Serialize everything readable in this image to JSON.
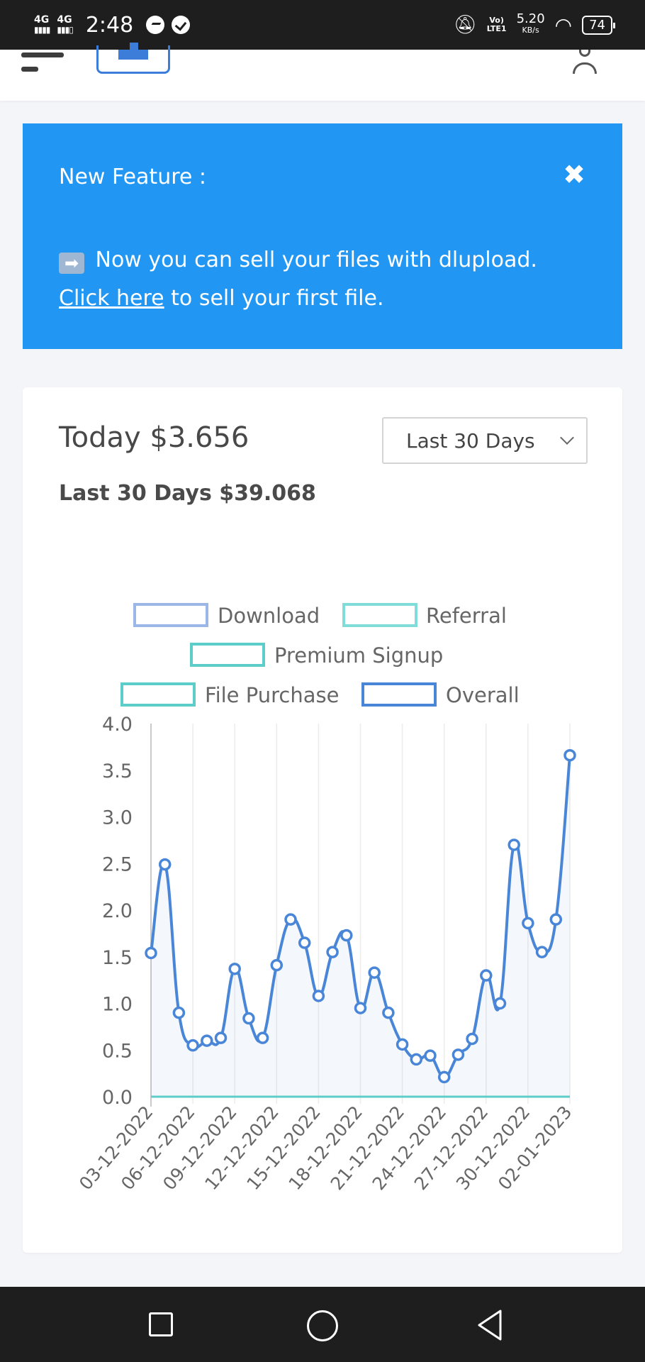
{
  "status_bar": {
    "network_1": "4G",
    "network_2": "4G",
    "time": "2:48",
    "volte_top": "Vo)",
    "volte_bottom": "LTE1",
    "speed_value": "5.20",
    "speed_unit": "KB/s",
    "battery": "74"
  },
  "alert": {
    "title": "New Feature :",
    "close": "✖",
    "arrow": "➡",
    "message": "Now you can sell your files with dlupload.",
    "link_text": "Click here",
    "link_suffix": "to sell your first file."
  },
  "earnings": {
    "today": "Today $3.656",
    "last30": "Last 30 Days $39.068",
    "range_selected": "Last 30 Days"
  },
  "chart_data": {
    "type": "line",
    "legend": [
      {
        "name": "Download",
        "color": "#9ab7e8"
      },
      {
        "name": "Referral",
        "color": "#80dcd8"
      },
      {
        "name": "Premium Signup",
        "color": "#5ccdc8"
      },
      {
        "name": "File Purchase",
        "color": "#5ccdc8"
      },
      {
        "name": "Overall",
        "color": "#4a86d8"
      }
    ],
    "ylim": [
      0,
      4.0
    ],
    "y_ticks": [
      "0.0",
      "0.5",
      "1.0",
      "1.5",
      "2.0",
      "2.5",
      "3.0",
      "3.5",
      "4.0"
    ],
    "x_tick_labels": [
      "03-12-2022",
      "06-12-2022",
      "09-12-2022",
      "12-12-2022",
      "15-12-2022",
      "18-12-2022",
      "21-12-2022",
      "24-12-2022",
      "27-12-2022",
      "30-12-2022",
      "02-01-2023"
    ],
    "overall_values": [
      1.54,
      2.49,
      0.9,
      0.55,
      0.6,
      0.63,
      1.37,
      0.84,
      0.63,
      1.41,
      1.9,
      1.65,
      1.08,
      1.55,
      1.73,
      0.95,
      1.33,
      0.9,
      0.56,
      0.4,
      0.44,
      0.21,
      0.45,
      0.62,
      1.3,
      1.0,
      2.7,
      1.86,
      1.55,
      1.9,
      3.66
    ],
    "flat_series_value": 0.0
  }
}
